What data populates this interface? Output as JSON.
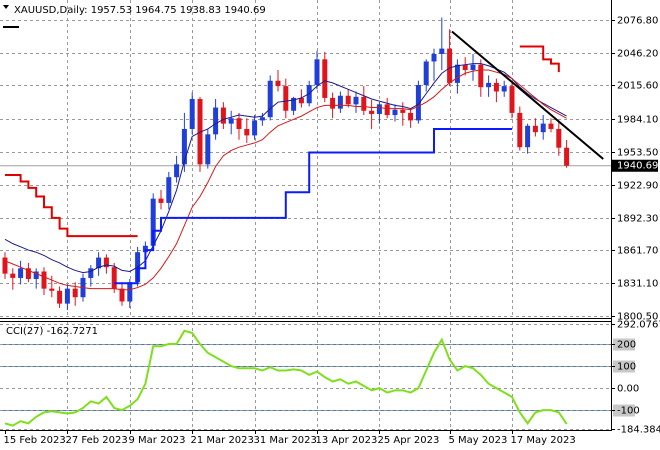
{
  "chart_data": [
    {
      "type": "candlestick",
      "title": "XAUUSD,Daily:",
      "categories": [
        "15 Feb 2023",
        null,
        null,
        null,
        null,
        null,
        null,
        null,
        "27 Feb 2023",
        null,
        null,
        null,
        null,
        null,
        null,
        null,
        "9 Mar 2023",
        null,
        null,
        null,
        null,
        null,
        null,
        null,
        "21 Mar 2023",
        null,
        null,
        null,
        null,
        null,
        null,
        null,
        "31 Mar 2023",
        null,
        null,
        null,
        null,
        null,
        null,
        null,
        "13 Apr 2023",
        null,
        null,
        null,
        null,
        null,
        null,
        null,
        "25 Apr 2023",
        null,
        null,
        null,
        null,
        null,
        null,
        null,
        null,
        "5 May 2023",
        null,
        null,
        null,
        null,
        null,
        null,
        null,
        "17 May 2023",
        null,
        null,
        null,
        null,
        null,
        null,
        null
      ],
      "open": [
        1855,
        1840,
        1836,
        1845,
        1835,
        1842,
        1826,
        1824,
        1812,
        1826,
        1818,
        1836,
        1845,
        1855,
        1846,
        1826,
        1814,
        1832,
        1860,
        1866,
        1910,
        1906,
        1930,
        1942,
        1975,
        2003,
        1942,
        1970,
        1995,
        1980,
        1985,
        1975,
        1969,
        1983,
        1986,
        2020,
        2015,
        1992,
        2004,
        1999,
        2016,
        2040,
        2004,
        1994,
        2006,
        1998,
        2005,
        1992,
        1989,
        1998,
        1988,
        1993,
        1990,
        1983,
        2016,
        2038,
        2045,
        2050,
        2018,
        2035,
        2030,
        2035,
        2014,
        2018,
        2010,
        2015,
        1990,
        1958,
        1978,
        1972,
        1980,
        1975,
        1957.53
      ],
      "high": [
        1860,
        1845,
        1852,
        1850,
        1845,
        1846,
        1838,
        1828,
        1830,
        1832,
        1840,
        1848,
        1860,
        1858,
        1850,
        1832,
        1835,
        1865,
        1870,
        1915,
        1918,
        1935,
        1950,
        1990,
        2009,
        2005,
        1975,
        2003,
        2000,
        1992,
        1990,
        1985,
        1988,
        1990,
        2025,
        2030,
        2022,
        2005,
        2012,
        2020,
        2048,
        2047,
        2009,
        2010,
        2012,
        2010,
        2015,
        2002,
        2000,
        2004,
        1998,
        2000,
        1994,
        2020,
        2040,
        2050,
        2079,
        2068,
        2040,
        2042,
        2045,
        2040,
        2025,
        2022,
        2020,
        2018,
        1996,
        1980,
        1985,
        1988,
        1985,
        1982,
        1964.75
      ],
      "low": [
        1835,
        1825,
        1830,
        1832,
        1826,
        1820,
        1818,
        1808,
        1806,
        1810,
        1814,
        1828,
        1838,
        1840,
        1822,
        1810,
        1808,
        1828,
        1855,
        1862,
        1900,
        1900,
        1925,
        1935,
        1970,
        1935,
        1938,
        1965,
        1975,
        1970,
        1965,
        1962,
        1965,
        1978,
        1983,
        2010,
        1985,
        1988,
        1995,
        1996,
        2012,
        2000,
        1985,
        1990,
        1995,
        1990,
        1988,
        1975,
        1980,
        1985,
        1982,
        1978,
        1976,
        1980,
        2010,
        2020,
        2030,
        2015,
        2008,
        2025,
        2020,
        2005,
        2005,
        2000,
        2005,
        1985,
        1955,
        1952,
        1968,
        1965,
        1972,
        1950,
        1938.83
      ],
      "close": [
        1840,
        1836,
        1845,
        1835,
        1842,
        1826,
        1824,
        1812,
        1826,
        1818,
        1836,
        1845,
        1855,
        1846,
        1826,
        1814,
        1832,
        1860,
        1866,
        1910,
        1906,
        1930,
        1942,
        1975,
        2003,
        1942,
        1970,
        1995,
        1980,
        1985,
        1975,
        1969,
        1983,
        1986,
        2020,
        2015,
        1992,
        2004,
        1999,
        2016,
        2040,
        2004,
        1994,
        2006,
        1998,
        2005,
        1992,
        1989,
        1998,
        1988,
        1993,
        1990,
        1983,
        2016,
        2038,
        2045,
        2050,
        2018,
        2035,
        2030,
        2035,
        2014,
        2018,
        2010,
        2015,
        1990,
        1958,
        1978,
        1972,
        1980,
        1975,
        1957.53,
        1940.69
      ],
      "up_color": "#1f3fd8",
      "down_color": "#e0141c",
      "overlays": [
        {
          "style": "line",
          "color": "#1b1b8a",
          "values": [
            1872,
            1868,
            1865,
            1862,
            1860,
            1857,
            1853,
            1850,
            1846,
            1843,
            1841,
            1842,
            1846,
            1848,
            1847,
            1843,
            1842,
            1846,
            1852,
            1866,
            1880,
            1898,
            1918,
            1945,
            1968,
            1972,
            1975,
            1980,
            1984,
            1986,
            1988,
            1987,
            1986,
            1987,
            1994,
            2000,
            2001,
            2002,
            2004,
            2008,
            2015,
            2020,
            2018,
            2015,
            2012,
            2009,
            2006,
            2003,
            2001,
            1999,
            1997,
            1996,
            1994,
            1998,
            2008,
            2018,
            2027,
            2032,
            2034,
            2035,
            2036,
            2036,
            2034,
            2031,
            2028,
            2022,
            2014,
            2008,
            2003,
            1999,
            1995,
            1991,
            1987
          ]
        },
        {
          "style": "line",
          "color": "#d41a1a",
          "values": [
            1852,
            1849,
            1846,
            1843,
            1840,
            1837,
            1834,
            1831,
            1829,
            1828,
            1827,
            1826,
            1826,
            1826,
            1826,
            1825,
            1825,
            1827,
            1830,
            1836,
            1845,
            1856,
            1868,
            1885,
            1902,
            1912,
            1925,
            1940,
            1950,
            1955,
            1958,
            1960,
            1962,
            1965,
            1972,
            1978,
            1981,
            1984,
            1987,
            1991,
            1995,
            1997,
            1997,
            1997,
            1997,
            1996,
            1996,
            1995,
            1995,
            1994,
            1994,
            1994,
            1993,
            1996,
            2000,
            2005,
            2012,
            2018,
            2023,
            2027,
            2029,
            2030,
            2030,
            2028,
            2026,
            2022,
            2016,
            2010,
            2004,
            1998,
            1993,
            1989,
            1985
          ]
        },
        {
          "style": "step",
          "color": "#e00000",
          "values": [
            1932,
            1932,
            1926,
            1920,
            1912,
            1902,
            1892,
            1882,
            1875,
            1875,
            1875,
            1875,
            1875,
            1875,
            1875,
            1875,
            1875,
            1875,
            null,
            null,
            null,
            null,
            null,
            null,
            null,
            null,
            null,
            null,
            null,
            null,
            null,
            null,
            null,
            null,
            null,
            null,
            null,
            null,
            null,
            null,
            null,
            null,
            null,
            null,
            null,
            null,
            null,
            null,
            null,
            null,
            null,
            null,
            null,
            null,
            null,
            null,
            null,
            null,
            null,
            null,
            null,
            null,
            null,
            null,
            null,
            null,
            2052,
            2052,
            2052,
            2040,
            2036,
            2028,
            null
          ]
        },
        {
          "style": "step",
          "color": "#0a1cff",
          "values": [
            null,
            null,
            null,
            null,
            null,
            null,
            null,
            null,
            null,
            null,
            null,
            null,
            null,
            null,
            1831,
            1831,
            1831,
            1845,
            1862,
            1880,
            1892,
            1892,
            1892,
            1892,
            1892,
            1892,
            1892,
            1892,
            1892,
            1892,
            1892,
            1892,
            1892,
            1892,
            1892,
            1892,
            1916,
            1916,
            1916,
            1953,
            1953,
            1953,
            1953,
            1953,
            1953,
            1953,
            1953,
            1953,
            1953,
            1953,
            1953,
            1953,
            1953,
            1953,
            1953,
            1975,
            1975,
            1975,
            1975,
            1975,
            1975,
            1975,
            1975,
            1975,
            1975,
            1975,
            null,
            null,
            null,
            null,
            null,
            null,
            null
          ]
        }
      ],
      "trendline": {
        "x": [
          57.3,
          76.7
        ],
        "values": [
          2066,
          1947
        ],
        "color": "#000000"
      },
      "ylim": [
        1798.6,
        2093.5
      ],
      "yticks": [
        {
          "value": 2076.8,
          "label": "2076.80"
        },
        {
          "value": 2046.2,
          "label": "2046.20"
        },
        {
          "value": 2015.6,
          "label": "2015.60"
        },
        {
          "value": 1984.1,
          "label": "1984.10"
        },
        {
          "value": 1953.5,
          "label": "1953.50"
        },
        {
          "value": 1922.9,
          "label": "1922.90"
        },
        {
          "value": 1892.3,
          "label": "1892.30"
        },
        {
          "value": 1861.7,
          "label": "1861.70"
        },
        {
          "value": 1831.1,
          "label": "1831.10"
        },
        {
          "value": 1800.5,
          "label": "1800.50"
        }
      ],
      "grid": true
    },
    {
      "type": "line",
      "title": "CCI(27)",
      "color": "#7ee01c",
      "values": [
        -160,
        -170,
        -150,
        -160,
        -130,
        -110,
        -105,
        -110,
        -115,
        -110,
        -90,
        -60,
        -70,
        -40,
        -90,
        -100,
        -80,
        -50,
        20,
        190,
        190,
        200,
        200,
        260,
        250,
        200,
        160,
        140,
        120,
        100,
        90,
        90,
        90,
        80,
        95,
        80,
        80,
        85,
        80,
        60,
        75,
        50,
        30,
        40,
        20,
        30,
        10,
        -10,
        0,
        -20,
        -10,
        -10,
        -20,
        0,
        80,
        160,
        220,
        130,
        80,
        100,
        90,
        60,
        20,
        0,
        -20,
        -40,
        -110,
        -160,
        -110,
        -100,
        -100,
        -110,
        -162.7271
      ],
      "levels": [
        200,
        100,
        -100
      ],
      "level_color": "#4a7ab4",
      "ylim": [
        -190,
        300
      ],
      "yticks": [
        292.0767,
        200,
        100,
        {
          "value": 0,
          "label": "0.00"
        },
        -100,
        -184.3844
      ],
      "grid": true
    }
  ]
}
